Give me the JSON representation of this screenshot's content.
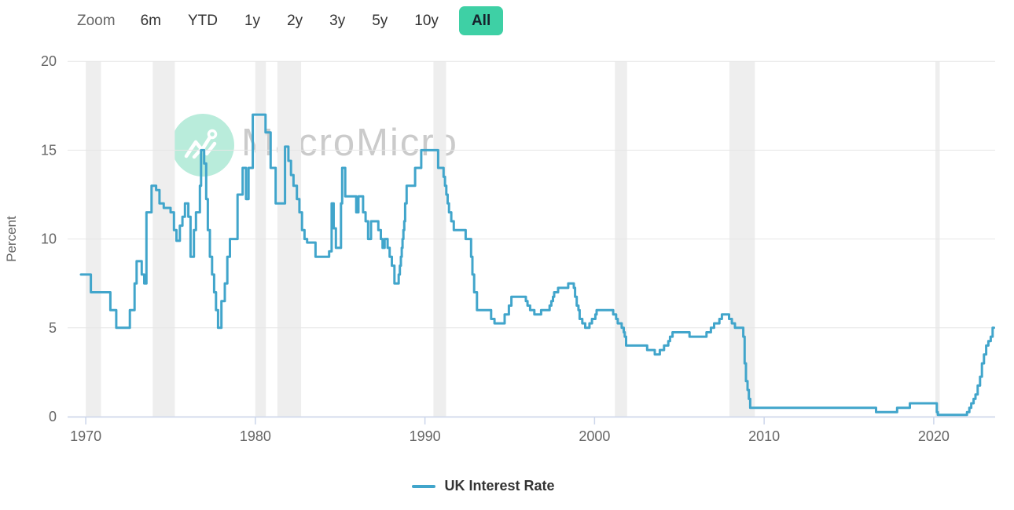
{
  "toolbar": {
    "zoom_label": "Zoom",
    "ranges": [
      {
        "label": "6m",
        "selected": false
      },
      {
        "label": "YTD",
        "selected": false
      },
      {
        "label": "1y",
        "selected": false
      },
      {
        "label": "2y",
        "selected": false
      },
      {
        "label": "3y",
        "selected": false
      },
      {
        "label": "5y",
        "selected": false
      },
      {
        "label": "10y",
        "selected": false
      },
      {
        "label": "All",
        "selected": true
      }
    ],
    "selected_bg": "#3ed0a5"
  },
  "watermark": {
    "text": "MacroMicro"
  },
  "legend": {
    "items": [
      {
        "label": "UK Interest Rate",
        "color": "#41a5cb"
      }
    ]
  },
  "colors": {
    "line": "#41a5cb",
    "grid": "#e6e6e6",
    "axis": "#ccd6eb",
    "band": "#eeeeee",
    "tick_label": "#666666",
    "axis_title": "#666666"
  },
  "chart_data": {
    "type": "line",
    "title": "",
    "xlabel": "",
    "ylabel": "Percent",
    "ylim": [
      0,
      20
    ],
    "xlim": [
      1968.93,
      2023.62
    ],
    "yticks": [
      0,
      5,
      10,
      15,
      20
    ],
    "xticks": [
      1970,
      1980,
      1990,
      2000,
      2010,
      2020
    ],
    "grid": "horizontal",
    "legend_position": "bottom-center",
    "recession_bands": [
      [
        1970.0,
        1970.9
      ],
      [
        1973.95,
        1975.25
      ],
      [
        1980.0,
        1980.62
      ],
      [
        1981.3,
        1982.7
      ],
      [
        1990.5,
        1991.25
      ],
      [
        2001.2,
        2001.92
      ],
      [
        2007.95,
        2009.45
      ],
      [
        2020.1,
        2020.35
      ]
    ],
    "series": [
      {
        "name": "UK Interest Rate",
        "color": "#41a5cb",
        "step": true,
        "end_x": 2023.55,
        "points": [
          [
            1969.72,
            8.0
          ],
          [
            1970.3,
            7.0
          ],
          [
            1971.45,
            6.0
          ],
          [
            1971.8,
            5.0
          ],
          [
            1972.6,
            6.0
          ],
          [
            1972.88,
            7.5
          ],
          [
            1973.0,
            8.75
          ],
          [
            1973.3,
            8.0
          ],
          [
            1973.45,
            7.5
          ],
          [
            1973.58,
            11.5
          ],
          [
            1973.88,
            13.0
          ],
          [
            1974.15,
            12.75
          ],
          [
            1974.35,
            12.0
          ],
          [
            1974.6,
            11.75
          ],
          [
            1975.0,
            11.5
          ],
          [
            1975.2,
            10.5
          ],
          [
            1975.35,
            9.9
          ],
          [
            1975.55,
            10.75
          ],
          [
            1975.7,
            11.25
          ],
          [
            1975.85,
            12.0
          ],
          [
            1976.05,
            11.25
          ],
          [
            1976.18,
            9.0
          ],
          [
            1976.38,
            10.5
          ],
          [
            1976.5,
            11.5
          ],
          [
            1976.73,
            13.0
          ],
          [
            1976.8,
            15.0
          ],
          [
            1976.98,
            14.25
          ],
          [
            1977.1,
            12.25
          ],
          [
            1977.2,
            10.5
          ],
          [
            1977.32,
            9.0
          ],
          [
            1977.45,
            8.0
          ],
          [
            1977.57,
            7.0
          ],
          [
            1977.68,
            6.0
          ],
          [
            1977.8,
            5.0
          ],
          [
            1978.0,
            6.5
          ],
          [
            1978.2,
            7.5
          ],
          [
            1978.35,
            9.0
          ],
          [
            1978.5,
            10.0
          ],
          [
            1978.95,
            12.5
          ],
          [
            1979.25,
            14.0
          ],
          [
            1979.45,
            12.25
          ],
          [
            1979.6,
            14.0
          ],
          [
            1979.85,
            17.0
          ],
          [
            1980.6,
            16.0
          ],
          [
            1980.9,
            14.0
          ],
          [
            1981.2,
            12.0
          ],
          [
            1981.75,
            15.2
          ],
          [
            1981.95,
            14.4
          ],
          [
            1982.1,
            13.6
          ],
          [
            1982.25,
            13.0
          ],
          [
            1982.45,
            12.25
          ],
          [
            1982.6,
            11.5
          ],
          [
            1982.75,
            10.5
          ],
          [
            1982.9,
            10.0
          ],
          [
            1983.05,
            9.8
          ],
          [
            1983.55,
            9.0
          ],
          [
            1984.35,
            9.3
          ],
          [
            1984.5,
            12.0
          ],
          [
            1984.62,
            10.6
          ],
          [
            1984.75,
            9.5
          ],
          [
            1985.05,
            12.0
          ],
          [
            1985.12,
            14.0
          ],
          [
            1985.3,
            12.4
          ],
          [
            1985.95,
            11.5
          ],
          [
            1986.08,
            12.4
          ],
          [
            1986.35,
            11.5
          ],
          [
            1986.5,
            11.0
          ],
          [
            1986.65,
            10.0
          ],
          [
            1986.82,
            11.0
          ],
          [
            1987.25,
            10.5
          ],
          [
            1987.4,
            10.0
          ],
          [
            1987.5,
            9.5
          ],
          [
            1987.62,
            10.0
          ],
          [
            1987.8,
            9.5
          ],
          [
            1987.92,
            9.0
          ],
          [
            1988.05,
            8.5
          ],
          [
            1988.2,
            7.5
          ],
          [
            1988.45,
            8.0
          ],
          [
            1988.52,
            8.5
          ],
          [
            1988.58,
            9.0
          ],
          [
            1988.63,
            9.5
          ],
          [
            1988.68,
            10.0
          ],
          [
            1988.73,
            10.5
          ],
          [
            1988.78,
            11.0
          ],
          [
            1988.83,
            12.0
          ],
          [
            1988.92,
            13.0
          ],
          [
            1989.42,
            14.0
          ],
          [
            1989.78,
            15.0
          ],
          [
            1990.78,
            14.0
          ],
          [
            1991.1,
            13.5
          ],
          [
            1991.18,
            13.0
          ],
          [
            1991.26,
            12.5
          ],
          [
            1991.34,
            12.0
          ],
          [
            1991.42,
            11.5
          ],
          [
            1991.55,
            11.0
          ],
          [
            1991.7,
            10.5
          ],
          [
            1992.4,
            10.0
          ],
          [
            1992.72,
            9.0
          ],
          [
            1992.8,
            8.0
          ],
          [
            1992.9,
            7.0
          ],
          [
            1993.07,
            6.0
          ],
          [
            1993.9,
            5.5
          ],
          [
            1994.1,
            5.25
          ],
          [
            1994.7,
            5.75
          ],
          [
            1994.95,
            6.25
          ],
          [
            1995.1,
            6.75
          ],
          [
            1995.95,
            6.5
          ],
          [
            1996.05,
            6.25
          ],
          [
            1996.2,
            6.0
          ],
          [
            1996.45,
            5.75
          ],
          [
            1996.85,
            6.0
          ],
          [
            1997.35,
            6.25
          ],
          [
            1997.45,
            6.5
          ],
          [
            1997.55,
            6.75
          ],
          [
            1997.62,
            7.0
          ],
          [
            1997.85,
            7.25
          ],
          [
            1998.45,
            7.5
          ],
          [
            1998.78,
            7.25
          ],
          [
            1998.85,
            6.75
          ],
          [
            1998.95,
            6.25
          ],
          [
            1999.05,
            6.0
          ],
          [
            1999.12,
            5.5
          ],
          [
            1999.28,
            5.25
          ],
          [
            1999.45,
            5.0
          ],
          [
            1999.7,
            5.25
          ],
          [
            1999.85,
            5.5
          ],
          [
            2000.05,
            5.75
          ],
          [
            2000.12,
            6.0
          ],
          [
            2001.1,
            5.75
          ],
          [
            2001.27,
            5.5
          ],
          [
            2001.37,
            5.25
          ],
          [
            2001.6,
            5.0
          ],
          [
            2001.72,
            4.75
          ],
          [
            2001.78,
            4.5
          ],
          [
            2001.86,
            4.0
          ],
          [
            2003.1,
            3.75
          ],
          [
            2003.55,
            3.5
          ],
          [
            2003.85,
            3.75
          ],
          [
            2004.1,
            4.0
          ],
          [
            2004.35,
            4.25
          ],
          [
            2004.45,
            4.5
          ],
          [
            2004.6,
            4.75
          ],
          [
            2005.6,
            4.5
          ],
          [
            2006.6,
            4.75
          ],
          [
            2006.86,
            5.0
          ],
          [
            2007.05,
            5.25
          ],
          [
            2007.36,
            5.5
          ],
          [
            2007.51,
            5.75
          ],
          [
            2007.93,
            5.5
          ],
          [
            2008.1,
            5.25
          ],
          [
            2008.28,
            5.0
          ],
          [
            2008.77,
            4.5
          ],
          [
            2008.85,
            3.0
          ],
          [
            2008.93,
            2.0
          ],
          [
            2009.02,
            1.5
          ],
          [
            2009.1,
            1.0
          ],
          [
            2009.18,
            0.5
          ],
          [
            2016.6,
            0.25
          ],
          [
            2017.84,
            0.5
          ],
          [
            2018.59,
            0.75
          ],
          [
            2020.18,
            0.25
          ],
          [
            2020.24,
            0.1
          ],
          [
            2021.96,
            0.25
          ],
          [
            2022.1,
            0.5
          ],
          [
            2022.21,
            0.75
          ],
          [
            2022.35,
            1.0
          ],
          [
            2022.46,
            1.25
          ],
          [
            2022.59,
            1.75
          ],
          [
            2022.73,
            2.25
          ],
          [
            2022.84,
            3.0
          ],
          [
            2022.96,
            3.5
          ],
          [
            2023.09,
            4.0
          ],
          [
            2023.22,
            4.25
          ],
          [
            2023.36,
            4.5
          ],
          [
            2023.47,
            5.0
          ]
        ]
      }
    ]
  }
}
